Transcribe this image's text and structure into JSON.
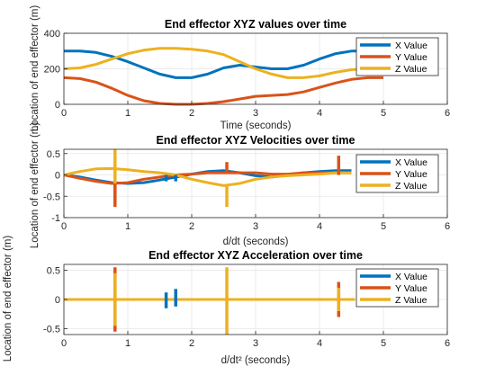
{
  "colors": {
    "X Value": "#0072BD",
    "Y Value": "#D95319",
    "Z Value": "#EDB120",
    "grid": "#e6e6e6",
    "axis": "#262626"
  },
  "chart_data": [
    {
      "type": "line",
      "title": "End effector XYZ values over time",
      "xlabel": "Time (seconds)",
      "ylabel": "Location of end effector (m)",
      "xlim": [
        0,
        6
      ],
      "ylim": [
        0,
        400
      ],
      "xticks": [
        "0",
        "1",
        "2",
        "3",
        "4",
        "5",
        "6"
      ],
      "yticks": [
        "0",
        "200",
        "400"
      ],
      "yticks_values": [
        0,
        200,
        400
      ],
      "grid": true,
      "legend": "top-right",
      "x": [
        0,
        0.25,
        0.5,
        0.75,
        1.0,
        1.25,
        1.5,
        1.75,
        2.0,
        2.25,
        2.5,
        2.75,
        3.0,
        3.25,
        3.5,
        3.75,
        4.0,
        4.25,
        4.5,
        4.75,
        5.0
      ],
      "series": [
        {
          "name": "X Value",
          "values": [
            300,
            300,
            292,
            270,
            240,
            205,
            170,
            150,
            150,
            170,
            205,
            220,
            210,
            200,
            200,
            220,
            255,
            285,
            300,
            300,
            300
          ]
        },
        {
          "name": "Y Value",
          "values": [
            150,
            145,
            125,
            90,
            50,
            20,
            5,
            0,
            0,
            5,
            15,
            30,
            45,
            50,
            55,
            70,
            95,
            120,
            140,
            150,
            150
          ]
        },
        {
          "name": "Z Value",
          "values": [
            200,
            205,
            225,
            255,
            285,
            305,
            315,
            315,
            310,
            300,
            280,
            240,
            200,
            170,
            150,
            150,
            160,
            180,
            195,
            200,
            200
          ]
        }
      ]
    },
    {
      "type": "line",
      "title": "End effector XYZ Velocities over time",
      "xlabel": "d/dt (seconds)",
      "ylabel": "Location of end effector (m)",
      "xlim": [
        0,
        6
      ],
      "ylim": [
        -1,
        0.6
      ],
      "xticks": [
        "0",
        "1",
        "2",
        "3",
        "4",
        "5",
        "6"
      ],
      "yticks": [
        "-1",
        "-0.5",
        "0",
        "0.5"
      ],
      "yticks_values": [
        -1,
        -0.5,
        0,
        0.5
      ],
      "grid": true,
      "legend": "top-right",
      "x": [
        0,
        0.25,
        0.5,
        0.75,
        1.0,
        1.25,
        1.5,
        1.75,
        2.0,
        2.25,
        2.5,
        2.75,
        3.0,
        3.25,
        3.5,
        3.75,
        4.0,
        4.25,
        4.5
      ],
      "series": [
        {
          "name": "X Value",
          "values": [
            0,
            -0.05,
            -0.12,
            -0.18,
            -0.2,
            -0.18,
            -0.12,
            -0.05,
            0.02,
            0.08,
            0.1,
            0.05,
            -0.02,
            -0.05,
            0,
            0.05,
            0.08,
            0.1,
            0.1
          ]
        },
        {
          "name": "Y Value",
          "values": [
            0,
            -0.08,
            -0.15,
            -0.2,
            -0.18,
            -0.1,
            -0.05,
            0,
            0.02,
            0.05,
            0.05,
            0.05,
            0.05,
            0.02,
            0.02,
            0.05,
            0.05,
            0.05,
            0.05
          ]
        },
        {
          "name": "Z Value",
          "values": [
            0,
            0.08,
            0.14,
            0.15,
            0.12,
            0.08,
            0.05,
            0,
            -0.1,
            -0.18,
            -0.25,
            -0.2,
            -0.1,
            -0.05,
            -0.02,
            0,
            0.02,
            0.05,
            0.05
          ]
        }
      ],
      "spikes": [
        {
          "series": "Z Value",
          "x": 0.8,
          "y0": -0.65,
          "y1": 0.6
        },
        {
          "series": "Y Value",
          "x": 0.8,
          "y0": -0.75,
          "y1": -0.2
        },
        {
          "series": "X Value",
          "x": 1.6,
          "y0": -0.15,
          "y1": 0
        },
        {
          "series": "X Value",
          "x": 1.75,
          "y0": -0.15,
          "y1": 0
        },
        {
          "series": "Z Value",
          "x": 2.55,
          "y0": -0.75,
          "y1": -0.25
        },
        {
          "series": "Y Value",
          "x": 2.55,
          "y0": 0.05,
          "y1": 0.3
        },
        {
          "series": "Y Value",
          "x": 4.3,
          "y0": 0,
          "y1": 0.45
        }
      ]
    },
    {
      "type": "line",
      "title": "End effector XYZ Acceleration over time",
      "xlabel": "d/dt² (seconds)",
      "ylabel": "Location of end effector (m)",
      "xlim": [
        0,
        6
      ],
      "ylim": [
        -0.6,
        0.6
      ],
      "xticks": [
        "0",
        "1",
        "2",
        "3",
        "4",
        "5",
        "6"
      ],
      "yticks": [
        "-0.5",
        "0",
        "0.5"
      ],
      "yticks_values": [
        -0.5,
        0,
        0.5
      ],
      "grid": true,
      "legend": "top-right",
      "x": [
        0,
        4.55
      ],
      "series": [
        {
          "name": "X Value",
          "values": [
            0,
            0
          ]
        },
        {
          "name": "Y Value",
          "values": [
            0,
            0
          ]
        },
        {
          "name": "Z Value",
          "values": [
            0,
            0
          ]
        }
      ],
      "spikes": [
        {
          "series": "Y Value",
          "x": 0.8,
          "y0": -0.55,
          "y1": 0.55
        },
        {
          "series": "Z Value",
          "x": 0.8,
          "y0": -0.45,
          "y1": 0.45
        },
        {
          "series": "X Value",
          "x": 1.6,
          "y0": -0.15,
          "y1": 0.12
        },
        {
          "series": "X Value",
          "x": 1.75,
          "y0": -0.12,
          "y1": 0.18
        },
        {
          "series": "Z Value",
          "x": 2.55,
          "y0": -0.6,
          "y1": 0.55
        },
        {
          "series": "Y Value",
          "x": 4.3,
          "y0": -0.3,
          "y1": 0.3
        },
        {
          "series": "Z Value",
          "x": 4.3,
          "y0": -0.2,
          "y1": 0.2
        }
      ]
    }
  ]
}
